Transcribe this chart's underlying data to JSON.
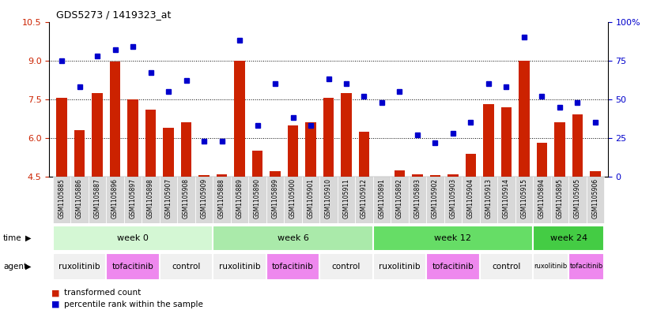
{
  "title": "GDS5273 / 1419323_at",
  "samples": [
    "GSM1105885",
    "GSM1105886",
    "GSM1105887",
    "GSM1105896",
    "GSM1105897",
    "GSM1105898",
    "GSM1105907",
    "GSM1105908",
    "GSM1105909",
    "GSM1105888",
    "GSM1105889",
    "GSM1105890",
    "GSM1105899",
    "GSM1105900",
    "GSM1105901",
    "GSM1105910",
    "GSM1105911",
    "GSM1105912",
    "GSM1105891",
    "GSM1105892",
    "GSM1105893",
    "GSM1105902",
    "GSM1105903",
    "GSM1105904",
    "GSM1105913",
    "GSM1105914",
    "GSM1105915",
    "GSM1105894",
    "GSM1105895",
    "GSM1105905",
    "GSM1105906"
  ],
  "transformed_count": [
    7.55,
    6.3,
    7.75,
    8.95,
    7.5,
    7.1,
    6.4,
    6.6,
    4.55,
    4.6,
    9.0,
    5.5,
    4.7,
    6.5,
    6.6,
    7.55,
    7.75,
    6.25,
    4.5,
    4.75,
    4.6,
    4.55,
    4.6,
    5.4,
    7.3,
    7.2,
    9.0,
    5.8,
    6.6,
    6.9,
    4.7
  ],
  "percentile_rank": [
    75,
    58,
    78,
    82,
    84,
    67,
    55,
    62,
    23,
    23,
    88,
    33,
    60,
    38,
    33,
    63,
    60,
    52,
    48,
    55,
    27,
    22,
    28,
    35,
    60,
    58,
    90,
    52,
    45,
    48,
    35
  ],
  "ylim_left": [
    4.5,
    10.5
  ],
  "ylim_right": [
    0,
    100
  ],
  "yticks_left": [
    4.5,
    6.0,
    7.5,
    9.0,
    10.5
  ],
  "yticks_right": [
    0,
    25,
    50,
    75,
    100
  ],
  "bar_color": "#cc2200",
  "dot_color": "#0000cc",
  "time_groups": [
    {
      "label": "week 0",
      "start": 0,
      "end": 9,
      "color": "#d4f7d4"
    },
    {
      "label": "week 6",
      "start": 9,
      "end": 18,
      "color": "#aaeaaa"
    },
    {
      "label": "week 12",
      "start": 18,
      "end": 27,
      "color": "#66dd66"
    },
    {
      "label": "week 24",
      "start": 27,
      "end": 31,
      "color": "#44cc44"
    }
  ],
  "agent_groups": [
    {
      "label": "ruxolitinib",
      "start": 0,
      "end": 3,
      "color": "#f0f0f0"
    },
    {
      "label": "tofacitinib",
      "start": 3,
      "end": 6,
      "color": "#ee88ee"
    },
    {
      "label": "control",
      "start": 6,
      "end": 9,
      "color": "#f0f0f0"
    },
    {
      "label": "ruxolitinib",
      "start": 9,
      "end": 12,
      "color": "#f0f0f0"
    },
    {
      "label": "tofacitinib",
      "start": 12,
      "end": 15,
      "color": "#ee88ee"
    },
    {
      "label": "control",
      "start": 15,
      "end": 18,
      "color": "#f0f0f0"
    },
    {
      "label": "ruxolitinib",
      "start": 18,
      "end": 21,
      "color": "#f0f0f0"
    },
    {
      "label": "tofacitinib",
      "start": 21,
      "end": 24,
      "color": "#ee88ee"
    },
    {
      "label": "control",
      "start": 24,
      "end": 27,
      "color": "#f0f0f0"
    },
    {
      "label": "ruxolitinib",
      "start": 27,
      "end": 29,
      "color": "#f0f0f0"
    },
    {
      "label": "tofacitinib",
      "start": 29,
      "end": 31,
      "color": "#ee88ee"
    }
  ],
  "legend_bar_label": "transformed count",
  "legend_dot_label": "percentile rank within the sample",
  "background_color": "#ffffff",
  "tick_label_color_left": "#cc2200",
  "tick_label_color_right": "#0000cc",
  "sample_bg_color": "#d8d8d8"
}
